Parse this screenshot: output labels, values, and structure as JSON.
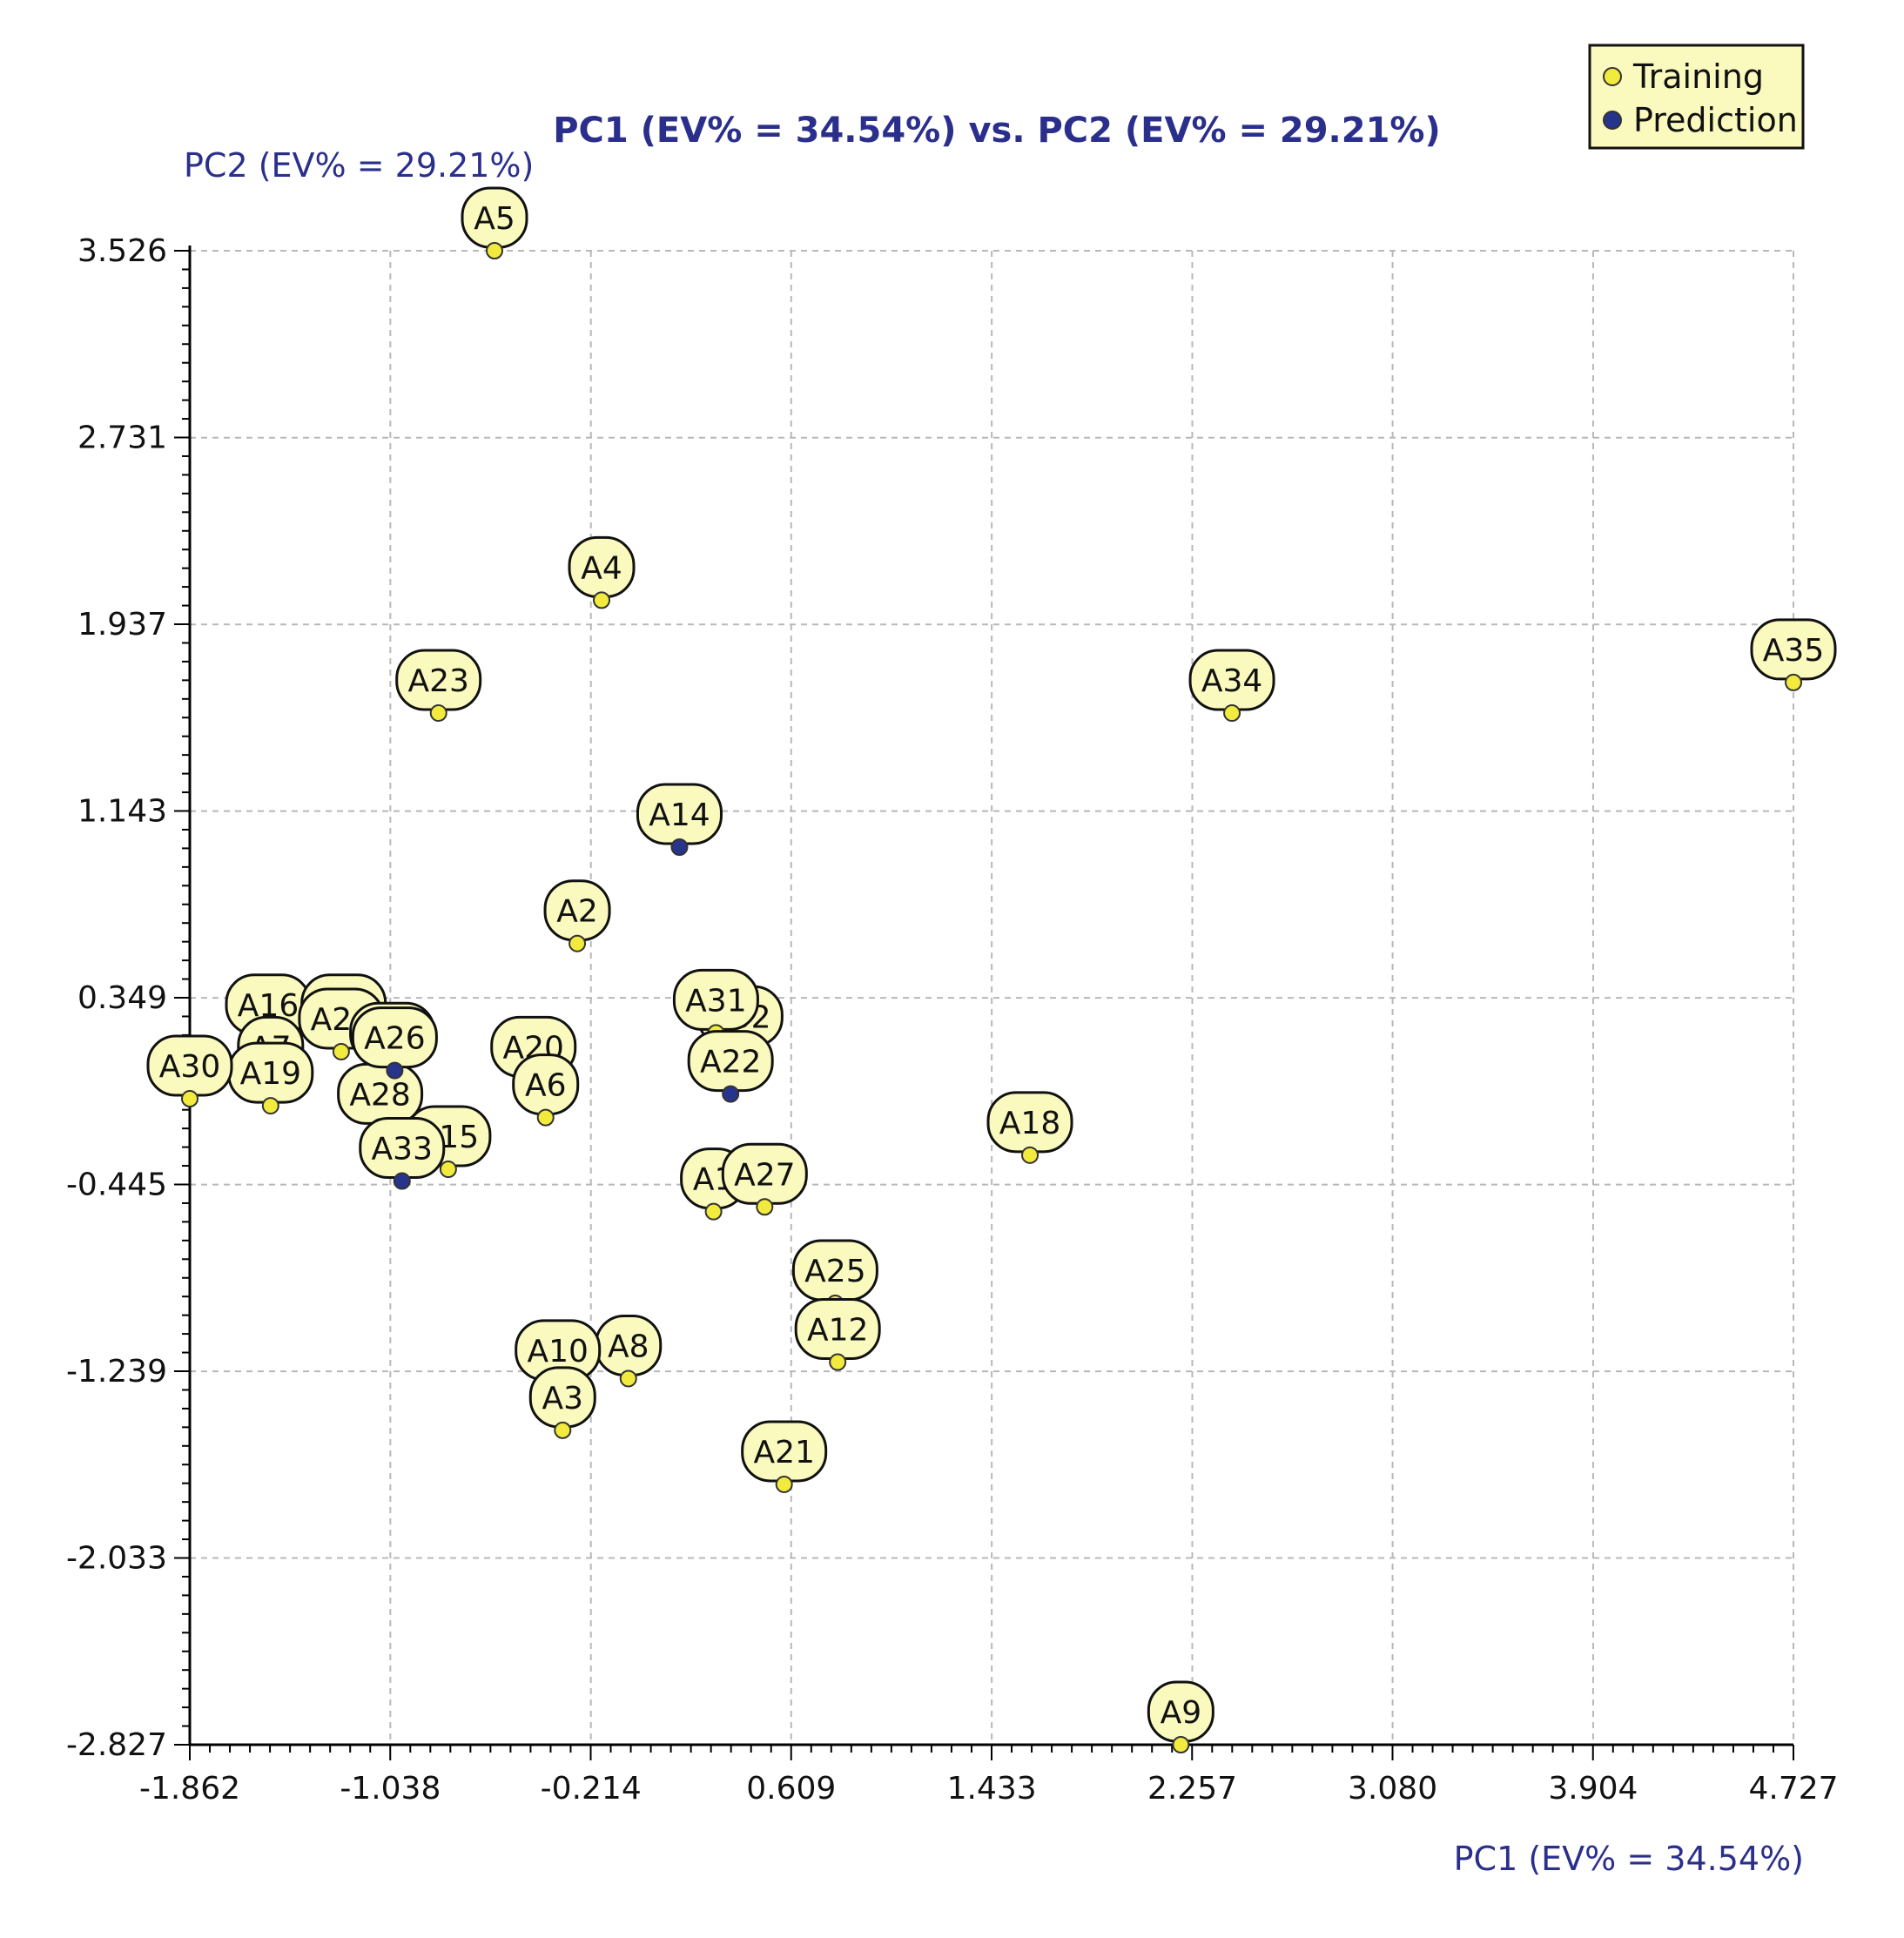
{
  "chart_data": {
    "type": "scatter",
    "title": "PC1 (EV% = 34.54%) vs. PC2 (EV% = 29.21%)",
    "xlabel": "PC1 (EV% = 34.54%)",
    "ylabel": "PC2 (EV% = 29.21%)",
    "xlim": [
      -1.862,
      4.727
    ],
    "ylim": [
      -2.827,
      3.526
    ],
    "xticks": [
      "-1.862",
      "-1.038",
      "-0.214",
      "0.609",
      "1.433",
      "2.257",
      "3.080",
      "3.904",
      "4.727"
    ],
    "yticks": [
      "3.526",
      "2.731",
      "1.937",
      "1.143",
      "0.349",
      "-0.445",
      "-1.239",
      "-2.033",
      "-2.827"
    ],
    "grid": true,
    "legend_position": "top-right",
    "colors": {
      "Training": "#f2ea3c",
      "Prediction": "#27348b",
      "label_bg": "#fafabe",
      "grid": "#b8b8b8",
      "title": "#2b2f8c"
    },
    "series": [
      {
        "name": "Training",
        "points": [
          {
            "label": "A5",
            "x": -0.61,
            "y": 3.526
          },
          {
            "label": "A4",
            "x": -0.17,
            "y": 2.04
          },
          {
            "label": "A23",
            "x": -0.84,
            "y": 1.56
          },
          {
            "label": "A35",
            "x": 4.727,
            "y": 1.69
          },
          {
            "label": "A34",
            "x": 2.42,
            "y": 1.56
          },
          {
            "label": "A2",
            "x": -0.27,
            "y": 0.58
          },
          {
            "label": "A16",
            "x": -1.54,
            "y": 0.18
          },
          {
            "label": "A13",
            "x": -1.23,
            "y": 0.18
          },
          {
            "label": "A24",
            "x": -1.24,
            "y": 0.12
          },
          {
            "label": "A11",
            "x": -1.03,
            "y": 0.06
          },
          {
            "label": "A7",
            "x": -1.53,
            "y": 0.0
          },
          {
            "label": "A19",
            "x": -1.53,
            "y": -0.11
          },
          {
            "label": "A30",
            "x": -1.862,
            "y": -0.08
          },
          {
            "label": "A28",
            "x": -1.08,
            "y": -0.2
          },
          {
            "label": "A20",
            "x": -0.45,
            "y": 0.0
          },
          {
            "label": "A6",
            "x": -0.4,
            "y": -0.16
          },
          {
            "label": "A15",
            "x": -0.8,
            "y": -0.38
          },
          {
            "label": "A32",
            "x": 0.4,
            "y": 0.13
          },
          {
            "label": "A31",
            "x": 0.3,
            "y": 0.2
          },
          {
            "label": "A18",
            "x": 1.59,
            "y": -0.32
          },
          {
            "label": "A1",
            "x": 0.29,
            "y": -0.56
          },
          {
            "label": "A27",
            "x": 0.5,
            "y": -0.54
          },
          {
            "label": "A25",
            "x": 0.79,
            "y": -0.95
          },
          {
            "label": "A12",
            "x": 0.8,
            "y": -1.2
          },
          {
            "label": "A8",
            "x": -0.06,
            "y": -1.27
          },
          {
            "label": "A10",
            "x": -0.35,
            "y": -1.29
          },
          {
            "label": "A3",
            "x": -0.33,
            "y": -1.49
          },
          {
            "label": "A21",
            "x": 0.58,
            "y": -1.72
          },
          {
            "label": "A9",
            "x": 2.21,
            "y": -2.827
          }
        ]
      },
      {
        "name": "Prediction",
        "points": [
          {
            "label": "A14",
            "x": 0.15,
            "y": 0.99
          },
          {
            "label": "A22",
            "x": 0.36,
            "y": -0.06
          },
          {
            "label": "A33",
            "x": -0.99,
            "y": -0.43
          },
          {
            "label": "A26",
            "x": -1.02,
            "y": 0.04
          }
        ]
      }
    ]
  }
}
